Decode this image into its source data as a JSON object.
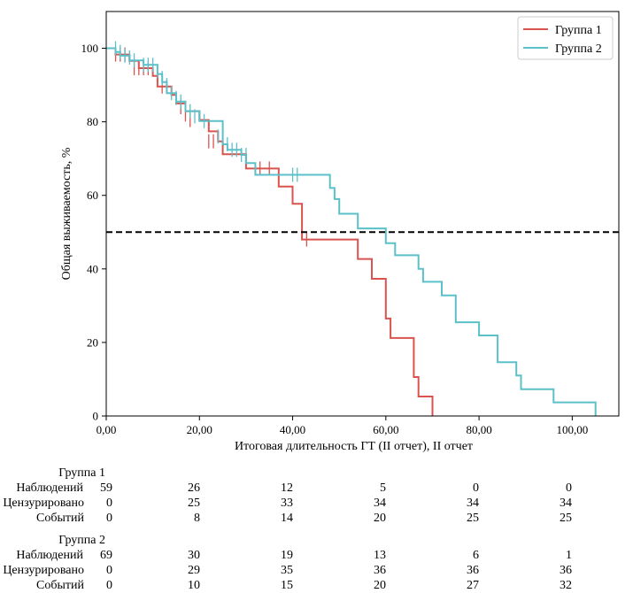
{
  "chart_data": {
    "type": "line",
    "subtype": "kaplan-meier",
    "xlabel": "Итоговая длительность ГТ (II отчет), II отчет",
    "ylabel": "Общая выживаемость, %",
    "xlim": [
      0,
      110
    ],
    "ylim": [
      0,
      110
    ],
    "x_ticks": [
      0,
      20,
      40,
      60,
      80,
      100
    ],
    "x_tick_labels": [
      "0,00",
      "20,00",
      "40,00",
      "60,00",
      "80,00",
      "100,00"
    ],
    "y_ticks": [
      0,
      20,
      40,
      60,
      80,
      100
    ],
    "y_tick_labels": [
      "0",
      "20",
      "40",
      "60",
      "80",
      "100"
    ],
    "reference_line": {
      "y": 50,
      "style": "dashed",
      "color": "#000000"
    },
    "legend_position": "top-right",
    "series": [
      {
        "name": "Группа 1",
        "color": "#d9534f",
        "steps": [
          [
            0,
            100
          ],
          [
            2,
            100
          ],
          [
            2,
            98.3
          ],
          [
            5,
            98.3
          ],
          [
            5,
            96.6
          ],
          [
            7,
            96.6
          ],
          [
            7,
            94.6
          ],
          [
            10,
            94.6
          ],
          [
            10,
            92.5
          ],
          [
            11,
            92.5
          ],
          [
            11,
            89.6
          ],
          [
            14,
            89.6
          ],
          [
            14,
            87.3
          ],
          [
            15,
            87.3
          ],
          [
            15,
            85
          ],
          [
            17,
            85
          ],
          [
            17,
            82.9
          ],
          [
            20,
            82.9
          ],
          [
            20,
            80.5
          ],
          [
            22,
            80.5
          ],
          [
            22,
            77.4
          ],
          [
            24,
            77.4
          ],
          [
            24,
            74.7
          ],
          [
            25,
            74.7
          ],
          [
            25,
            71.2
          ],
          [
            30,
            71.2
          ],
          [
            30,
            67.3
          ],
          [
            37,
            67.3
          ],
          [
            37,
            62.4
          ],
          [
            40,
            62.4
          ],
          [
            40,
            57.7
          ],
          [
            42,
            57.7
          ],
          [
            42,
            48
          ],
          [
            54,
            48
          ],
          [
            54,
            42.7
          ],
          [
            57,
            42.7
          ],
          [
            57,
            37.3
          ],
          [
            60,
            37.3
          ],
          [
            60,
            26.5
          ],
          [
            61,
            26.5
          ],
          [
            61,
            21.2
          ],
          [
            66,
            21.2
          ],
          [
            66,
            10.6
          ],
          [
            67,
            10.6
          ],
          [
            67,
            5.3
          ],
          [
            70,
            5.3
          ],
          [
            70,
            0
          ]
        ],
        "censored": [
          [
            2,
            98.3
          ],
          [
            3,
            98.3
          ],
          [
            4,
            98.3
          ],
          [
            6,
            94.6
          ],
          [
            7,
            94.6
          ],
          [
            8,
            94.6
          ],
          [
            9,
            94.6
          ],
          [
            12,
            89.6
          ],
          [
            13,
            89.6
          ],
          [
            16,
            84
          ],
          [
            17,
            82
          ],
          [
            18,
            80.5
          ],
          [
            22,
            74.7
          ],
          [
            23,
            74.7
          ],
          [
            33,
            67.3
          ],
          [
            35,
            67.3
          ],
          [
            43,
            48
          ]
        ]
      },
      {
        "name": "Группа 2",
        "color": "#5bc0c8",
        "steps": [
          [
            0,
            100
          ],
          [
            2,
            100
          ],
          [
            2,
            99
          ],
          [
            3,
            99
          ],
          [
            3,
            98
          ],
          [
            5,
            98
          ],
          [
            5,
            96.7
          ],
          [
            8,
            96.7
          ],
          [
            8,
            95.5
          ],
          [
            11,
            95.5
          ],
          [
            11,
            93
          ],
          [
            12,
            93
          ],
          [
            12,
            90.8
          ],
          [
            13,
            90.8
          ],
          [
            13,
            87.8
          ],
          [
            15,
            87.8
          ],
          [
            15,
            85.5
          ],
          [
            17,
            85.5
          ],
          [
            17,
            82.9
          ],
          [
            20,
            82.9
          ],
          [
            20,
            80.2
          ],
          [
            25,
            80.2
          ],
          [
            25,
            73.9
          ],
          [
            26,
            73.9
          ],
          [
            26,
            72.4
          ],
          [
            29,
            72.4
          ],
          [
            29,
            71
          ],
          [
            30,
            71
          ],
          [
            30,
            68.8
          ],
          [
            32,
            68.8
          ],
          [
            32,
            65.6
          ],
          [
            48,
            65.6
          ],
          [
            48,
            62
          ],
          [
            49,
            62
          ],
          [
            49,
            59
          ],
          [
            50,
            59
          ],
          [
            50,
            55
          ],
          [
            54,
            55
          ],
          [
            54,
            51
          ],
          [
            60,
            51
          ],
          [
            60,
            47
          ],
          [
            62,
            47
          ],
          [
            62,
            43.7
          ],
          [
            67,
            43.7
          ],
          [
            67,
            40
          ],
          [
            68,
            40
          ],
          [
            68,
            36.5
          ],
          [
            72,
            36.5
          ],
          [
            72,
            32.8
          ],
          [
            75,
            32.8
          ],
          [
            75,
            25.5
          ],
          [
            80,
            25.5
          ],
          [
            80,
            21.9
          ],
          [
            84,
            21.9
          ],
          [
            84,
            14.6
          ],
          [
            88,
            14.6
          ],
          [
            88,
            11
          ],
          [
            89,
            11
          ],
          [
            89,
            7.3
          ],
          [
            96,
            7.3
          ],
          [
            96,
            3.7
          ],
          [
            105,
            3.7
          ],
          [
            105,
            0
          ]
        ],
        "censored": [
          [
            2,
            100
          ],
          [
            3,
            99
          ],
          [
            4,
            98
          ],
          [
            5,
            97.5
          ],
          [
            6,
            96.7
          ],
          [
            8,
            95.5
          ],
          [
            9,
            95.5
          ],
          [
            10,
            95.5
          ],
          [
            11,
            93.8
          ],
          [
            12,
            91.9
          ],
          [
            13,
            90
          ],
          [
            14,
            87.8
          ],
          [
            15,
            86.5
          ],
          [
            16,
            85.5
          ],
          [
            18,
            82.9
          ],
          [
            19,
            81.5
          ],
          [
            21,
            80.2
          ],
          [
            24,
            76
          ],
          [
            26,
            73.9
          ],
          [
            27,
            72.4
          ],
          [
            28,
            72.4
          ],
          [
            29,
            71
          ],
          [
            30,
            71
          ],
          [
            40,
            65.6
          ],
          [
            41,
            65.6
          ]
        ]
      }
    ]
  },
  "risk_table": {
    "groups": [
      {
        "title": "Группа 1",
        "rows": [
          {
            "label": "Наблюдений",
            "values": [
              "59",
              "26",
              "12",
              "5",
              "0",
              "0"
            ]
          },
          {
            "label": "Цензурировано",
            "values": [
              "0",
              "25",
              "33",
              "34",
              "34",
              "34"
            ]
          },
          {
            "label": "Событий",
            "values": [
              "0",
              "8",
              "14",
              "20",
              "25",
              "25"
            ]
          }
        ]
      },
      {
        "title": "Группа 2",
        "rows": [
          {
            "label": "Наблюдений",
            "values": [
              "69",
              "30",
              "19",
              "13",
              "6",
              "1"
            ]
          },
          {
            "label": "Цензурировано",
            "values": [
              "0",
              "29",
              "35",
              "36",
              "36",
              "36"
            ]
          },
          {
            "label": "Событий",
            "values": [
              "0",
              "10",
              "15",
              "20",
              "27",
              "32"
            ]
          }
        ]
      }
    ]
  }
}
